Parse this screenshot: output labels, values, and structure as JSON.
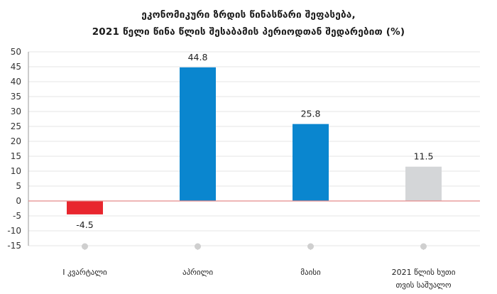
{
  "chart_data": {
    "type": "bar",
    "title": "ეკონომიკური ზრდის წინასწარი შეფასება,",
    "subtitle": "2021 წელი წინა წლის შესაბამის პერიოდთან შედარებით (%)",
    "categories": [
      [
        "I კვარტალი"
      ],
      [
        "აპრილი"
      ],
      [
        "მაისი"
      ],
      [
        "2021 წლის ხუთი",
        "თვის საშუალო"
      ]
    ],
    "values": [
      -4.5,
      44.8,
      25.8,
      11.5
    ],
    "value_labels": [
      "-4.5",
      "44.8",
      "25.8",
      "11.5"
    ],
    "bar_colors": [
      "#e8262e",
      "#0a86cf",
      "#0a86cf",
      "#d4d6d8"
    ],
    "zero_line_color": "#e58a8a",
    "ylim": [
      -15,
      50
    ],
    "yticks": [
      50,
      45,
      40,
      35,
      30,
      25,
      20,
      15,
      10,
      5,
      0,
      -5,
      -10,
      -15
    ],
    "grid": true,
    "xlabel": "",
    "ylabel": ""
  }
}
